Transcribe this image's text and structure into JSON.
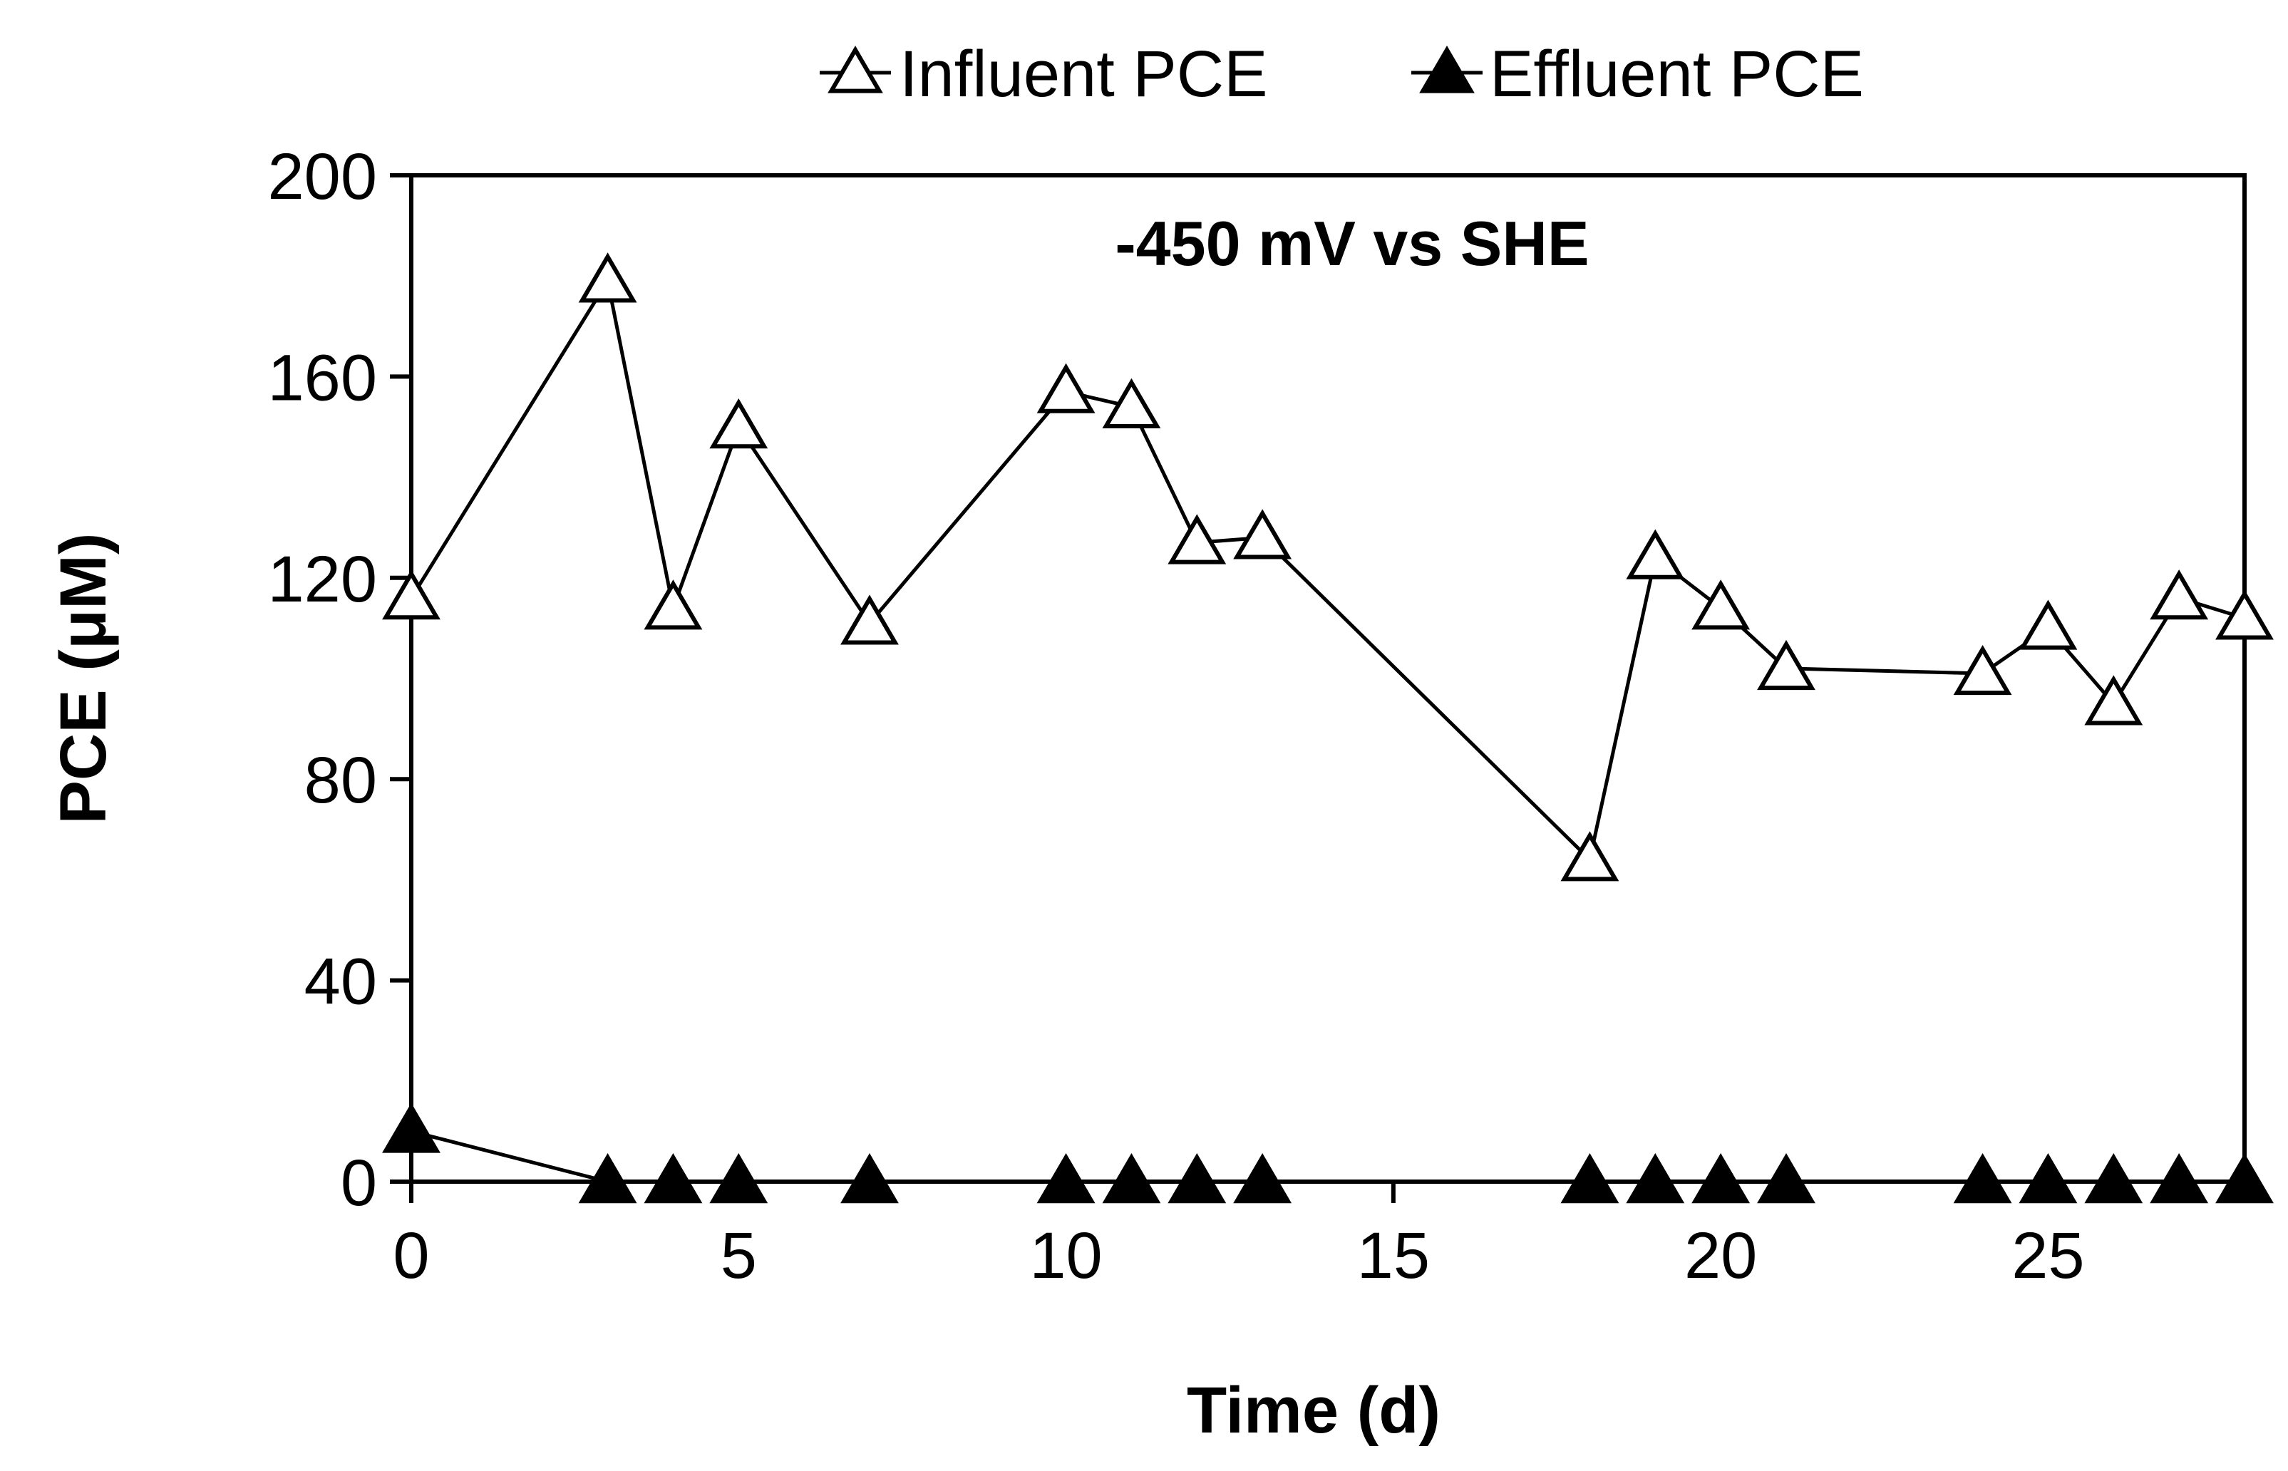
{
  "chart_data": {
    "type": "line",
    "title": "",
    "annotation": "-450 mV vs SHE",
    "xlabel": "Time (d)",
    "ylabel": "PCE (μM)",
    "xlim": [
      0,
      28
    ],
    "ylim": [
      0,
      200
    ],
    "xticks": [
      0,
      5,
      10,
      15,
      20,
      25
    ],
    "yticks": [
      0,
      40,
      80,
      120,
      160,
      200
    ],
    "grid": false,
    "legend_position": "top-center",
    "x": [
      0,
      3,
      4,
      5,
      7,
      10,
      11,
      12,
      13,
      18,
      19,
      20,
      21,
      24,
      25,
      26,
      27,
      28
    ],
    "series": [
      {
        "name": "Influent PCE",
        "marker": "open-triangle",
        "values": [
          116,
          179,
          114,
          150,
          111,
          157,
          154,
          127,
          128,
          64,
          124,
          114,
          102,
          101,
          110,
          95,
          116,
          112
        ]
      },
      {
        "name": "Effluent PCE",
        "marker": "filled-triangle",
        "values": [
          10,
          0,
          0,
          0,
          0,
          0,
          0,
          0,
          0,
          0,
          0,
          0,
          0,
          0,
          0,
          0,
          0,
          0
        ]
      }
    ],
    "colors": {
      "line": "#000000",
      "open_fill": "#ffffff",
      "filled_fill": "#000000"
    }
  }
}
